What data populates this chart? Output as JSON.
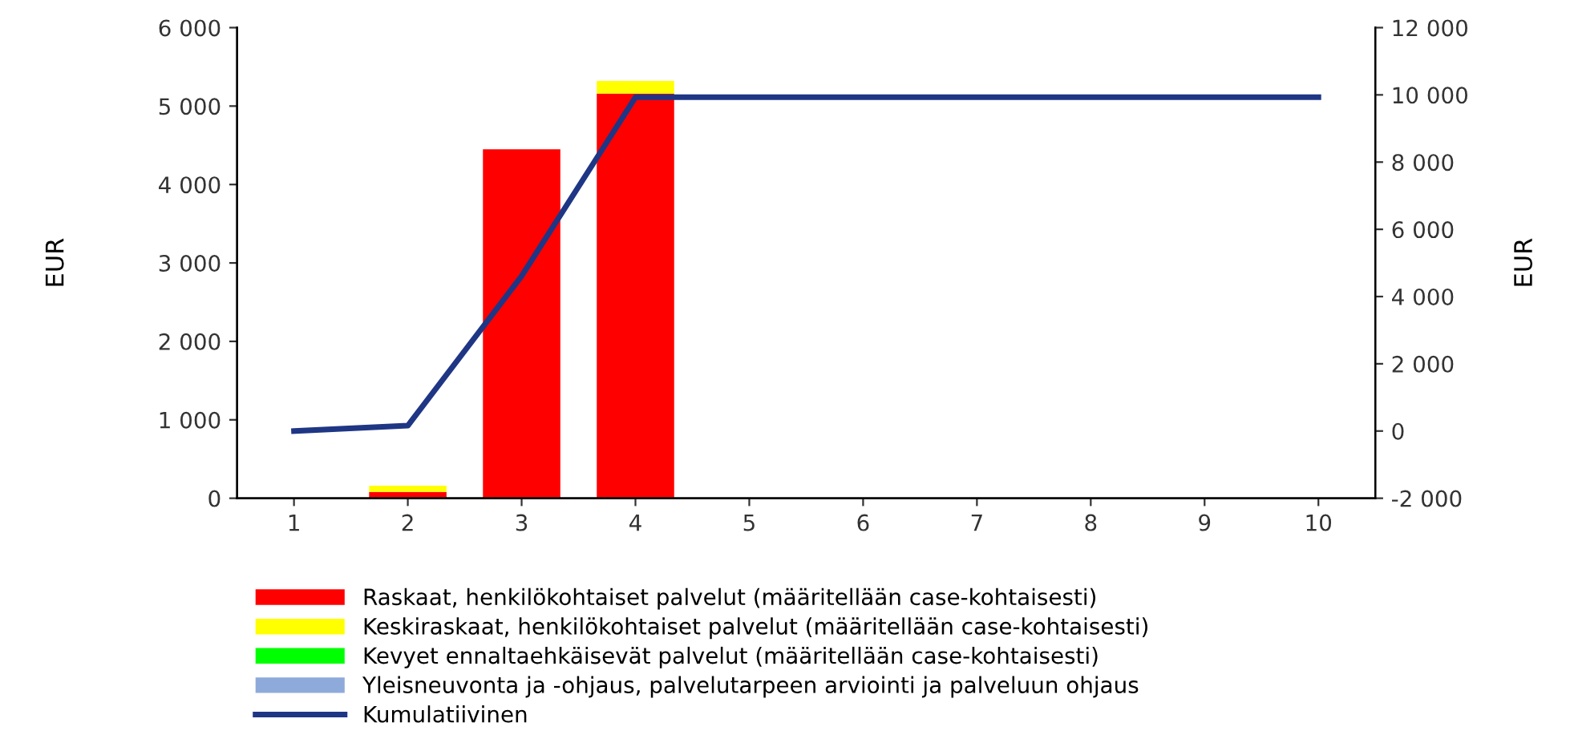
{
  "chart_data": {
    "type": "bar",
    "stacked": true,
    "categories": [
      "1",
      "2",
      "3",
      "4",
      "5",
      "6",
      "7",
      "8",
      "9",
      "10"
    ],
    "series": [
      {
        "name": "Raskaat, henkilökohtaiset palvelut (määritellään case-kohtaisesti)",
        "color": "#ff0000",
        "values": [
          0,
          80,
          4450,
          5160,
          0,
          0,
          0,
          0,
          0,
          0
        ]
      },
      {
        "name": "Keskiraskaat, henkilökohtaiset palvelut (määritellään case-kohtaisesti)",
        "color": "#ffff00",
        "values": [
          0,
          80,
          0,
          160,
          0,
          0,
          0,
          0,
          0,
          0
        ]
      },
      {
        "name": "Kevyet ennaltaehkäisevät palvelut (määritellään case-kohtaisesti)",
        "color": "#00ff00",
        "values": [
          0,
          0,
          0,
          0,
          0,
          0,
          0,
          0,
          0,
          0
        ]
      },
      {
        "name": "Yleisneuvonta ja -ohjaus, palvelutarpeen arviointi ja palveluun ohjaus",
        "color": "#8eaadb",
        "values": [
          0,
          0,
          0,
          0,
          0,
          0,
          0,
          0,
          0,
          0
        ]
      },
      {
        "name": "Kumulatiivinen",
        "color": "#1f3685",
        "type": "line",
        "axis": "y2",
        "values": [
          0,
          160,
          4610,
          9930,
          9930,
          9930,
          9930,
          9930,
          9930,
          9930
        ]
      }
    ],
    "ylabel": "EUR",
    "y2label": "EUR",
    "ylim": [
      0,
      6000
    ],
    "yticks": [
      0,
      {
        "value": 1000,
        "label": "1 000"
      },
      {
        "value": 2000,
        "label": "2 000"
      },
      {
        "value": 3000,
        "label": "3 000"
      },
      {
        "value": 4000,
        "label": "4 000"
      },
      {
        "value": 5000,
        "label": "5 000"
      },
      {
        "value": 6000,
        "label": "6 000"
      }
    ],
    "y2lim": [
      -2000,
      12000
    ],
    "y2ticks": [
      {
        "value": -2000,
        "label": "-2 000"
      },
      0,
      {
        "value": 2000,
        "label": "2 000"
      },
      {
        "value": 4000,
        "label": "4 000"
      },
      {
        "value": 6000,
        "label": "6 000"
      },
      {
        "value": 8000,
        "label": "8 000"
      },
      {
        "value": 10000,
        "label": "10 000"
      },
      {
        "value": 12000,
        "label": "12 000"
      }
    ],
    "legend": "bottom",
    "grid": false
  }
}
